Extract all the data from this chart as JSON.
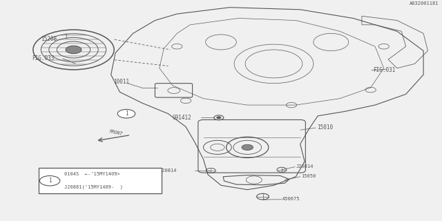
{
  "bg_color": "#f0f0f0",
  "line_color": "#555555",
  "legend_text1": "0104S  ←-'15MY1409>",
  "legend_text2": "J20881('15MY1409-  )",
  "diagram_ref": "A032001181"
}
